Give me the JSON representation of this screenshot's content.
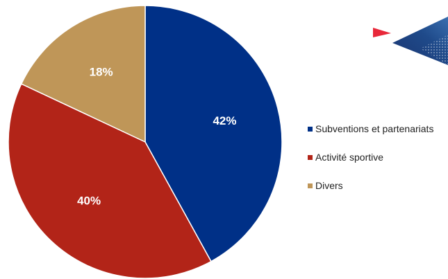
{
  "logo": {
    "name": "federation-logo",
    "colors": {
      "red": "#e8283a",
      "navy": "#1f3f7a",
      "blue": "#3a6fb0"
    }
  },
  "chart_data": {
    "type": "pie",
    "title": "",
    "legend_position": "right",
    "categories": [
      "Subventions et partenariats",
      "Activité sportive",
      "Divers"
    ],
    "values": [
      42,
      40,
      18
    ],
    "labels": [
      "42%",
      "40%",
      "18%"
    ],
    "colors": [
      "#003087",
      "#b22418",
      "#bf9658"
    ],
    "start_angle_deg": 0,
    "direction": "clockwise"
  }
}
